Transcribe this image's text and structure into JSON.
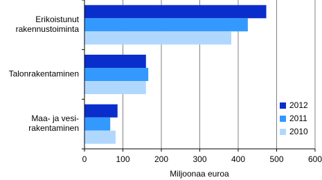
{
  "chart_data": {
    "type": "hbar",
    "categories": [
      "Erikoistunut\nrakennustoiminta",
      "Talonrakentaminen",
      "Maa- ja vesi-\nrakentaminen"
    ],
    "series": [
      {
        "name": "2012",
        "color": "#0a2ecc",
        "values": [
          473,
          160,
          86
        ]
      },
      {
        "name": "2011",
        "color": "#3399ff",
        "values": [
          425,
          166,
          67
        ]
      },
      {
        "name": "2010",
        "color": "#b0d8ff",
        "values": [
          382,
          160,
          81
        ]
      }
    ],
    "x_label": "Miljoonaa euroa",
    "xlim": [
      0,
      600
    ],
    "xticks": [
      0,
      100,
      200,
      300,
      400,
      500,
      600
    ],
    "grid": true,
    "legend": "lower right"
  }
}
